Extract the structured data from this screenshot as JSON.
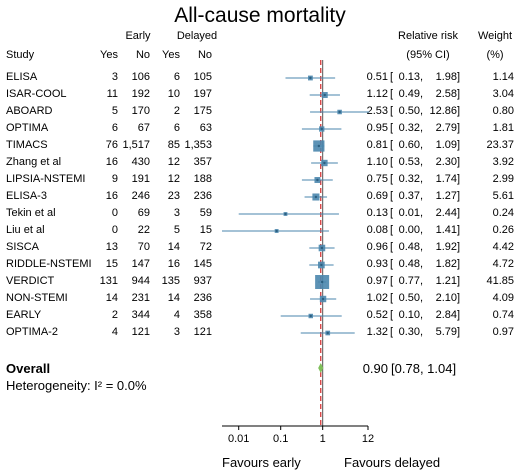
{
  "chart_data": {
    "type": "forest",
    "title": "All-cause mortality",
    "headers": {
      "study": "Study",
      "early": "Early",
      "delayed": "Delayed",
      "yes": "Yes",
      "no": "No",
      "rr_line1": "Relative risk",
      "rr_line2": "(95% CI)",
      "weight_line1": "Weight",
      "weight_line2": "(%)"
    },
    "studies": [
      {
        "name": "ELISA",
        "early_yes": "3",
        "early_no": "106",
        "delayed_yes": "6",
        "delayed_no": "105",
        "rr": "0.51",
        "lo": "0.13",
        "hi": "1.98",
        "weight": "1.14"
      },
      {
        "name": "ISAR-COOL",
        "early_yes": "11",
        "early_no": "192",
        "delayed_yes": "10",
        "delayed_no": "197",
        "rr": "1.12",
        "lo": "0.49",
        "hi": "2.58",
        "weight": "3.04"
      },
      {
        "name": "ABOARD",
        "early_yes": "5",
        "early_no": "170",
        "delayed_yes": "2",
        "delayed_no": "175",
        "rr": "2.53",
        "lo": "0.50",
        "hi": "12.86",
        "weight": "0.80"
      },
      {
        "name": "OPTIMA",
        "early_yes": "6",
        "early_no": "67",
        "delayed_yes": "6",
        "delayed_no": "63",
        "rr": "0.95",
        "lo": "0.32",
        "hi": "2.79",
        "weight": "1.81"
      },
      {
        "name": "TIMACS",
        "early_yes": "76",
        "early_no": "1,517",
        "delayed_yes": "85",
        "delayed_no": "1,353",
        "rr": "0.81",
        "lo": "0.60",
        "hi": "1.09",
        "weight": "23.37"
      },
      {
        "name": "Zhang et al",
        "early_yes": "16",
        "early_no": "430",
        "delayed_yes": "12",
        "delayed_no": "357",
        "rr": "1.10",
        "lo": "0.53",
        "hi": "2.30",
        "weight": "3.92"
      },
      {
        "name": "LIPSIA-NSTEMI",
        "early_yes": "9",
        "early_no": "191",
        "delayed_yes": "12",
        "delayed_no": "188",
        "rr": "0.75",
        "lo": "0.32",
        "hi": "1.74",
        "weight": "2.99"
      },
      {
        "name": "ELISA-3",
        "early_yes": "16",
        "early_no": "246",
        "delayed_yes": "23",
        "delayed_no": "236",
        "rr": "0.69",
        "lo": "0.37",
        "hi": "1.27",
        "weight": "5.61"
      },
      {
        "name": "Tekin et al",
        "early_yes": "0",
        "early_no": "69",
        "delayed_yes": "3",
        "delayed_no": "59",
        "rr": "0.13",
        "lo": "0.01",
        "hi": "2.44",
        "weight": "0.24"
      },
      {
        "name": "Liu et al",
        "early_yes": "0",
        "early_no": "22",
        "delayed_yes": "5",
        "delayed_no": "15",
        "rr": "0.08",
        "lo": "0.00",
        "hi": "1.41",
        "weight": "0.26"
      },
      {
        "name": "SISCA",
        "early_yes": "13",
        "early_no": "70",
        "delayed_yes": "14",
        "delayed_no": "72",
        "rr": "0.96",
        "lo": "0.48",
        "hi": "1.92",
        "weight": "4.42"
      },
      {
        "name": "RIDDLE-NSTEMI",
        "early_yes": "15",
        "early_no": "147",
        "delayed_yes": "16",
        "delayed_no": "145",
        "rr": "0.93",
        "lo": "0.48",
        "hi": "1.82",
        "weight": "4.72"
      },
      {
        "name": "VERDICT",
        "early_yes": "131",
        "early_no": "944",
        "delayed_yes": "135",
        "delayed_no": "937",
        "rr": "0.97",
        "lo": "0.77",
        "hi": "1.21",
        "weight": "41.85"
      },
      {
        "name": "NON-STEMI",
        "early_yes": "14",
        "early_no": "231",
        "delayed_yes": "14",
        "delayed_no": "236",
        "rr": "1.02",
        "lo": "0.50",
        "hi": "2.10",
        "weight": "4.09"
      },
      {
        "name": "EARLY",
        "early_yes": "2",
        "early_no": "344",
        "delayed_yes": "4",
        "delayed_no": "358",
        "rr": "0.52",
        "lo": "0.10",
        "hi": "2.84",
        "weight": "0.74"
      },
      {
        "name": "OPTIMA-2",
        "early_yes": "4",
        "early_no": "121",
        "delayed_yes": "3",
        "delayed_no": "121",
        "rr": "1.32",
        "lo": "0.30",
        "hi": "5.79",
        "weight": "0.97"
      }
    ],
    "overall": {
      "label": "Overall",
      "rr": "0.90",
      "lo": "0.78",
      "hi": "1.04"
    },
    "heterogeneity": "Heterogeneity: I² = 0.0%",
    "x_axis": {
      "scale": "log",
      "ticks": [
        0.01,
        0.1,
        1,
        12
      ],
      "tick_labels": [
        "0.01",
        "0.1",
        "1",
        "12"
      ],
      "range": [
        0.004,
        12
      ],
      "label_left": "Favours early",
      "label_right": "Favours delayed"
    },
    "colors": {
      "marker": "#4a86ad",
      "ci_line": "#4a86ad",
      "overall_diamond": "#7fbf5a",
      "null_line": "#555555",
      "overall_line": "#d62728"
    }
  }
}
